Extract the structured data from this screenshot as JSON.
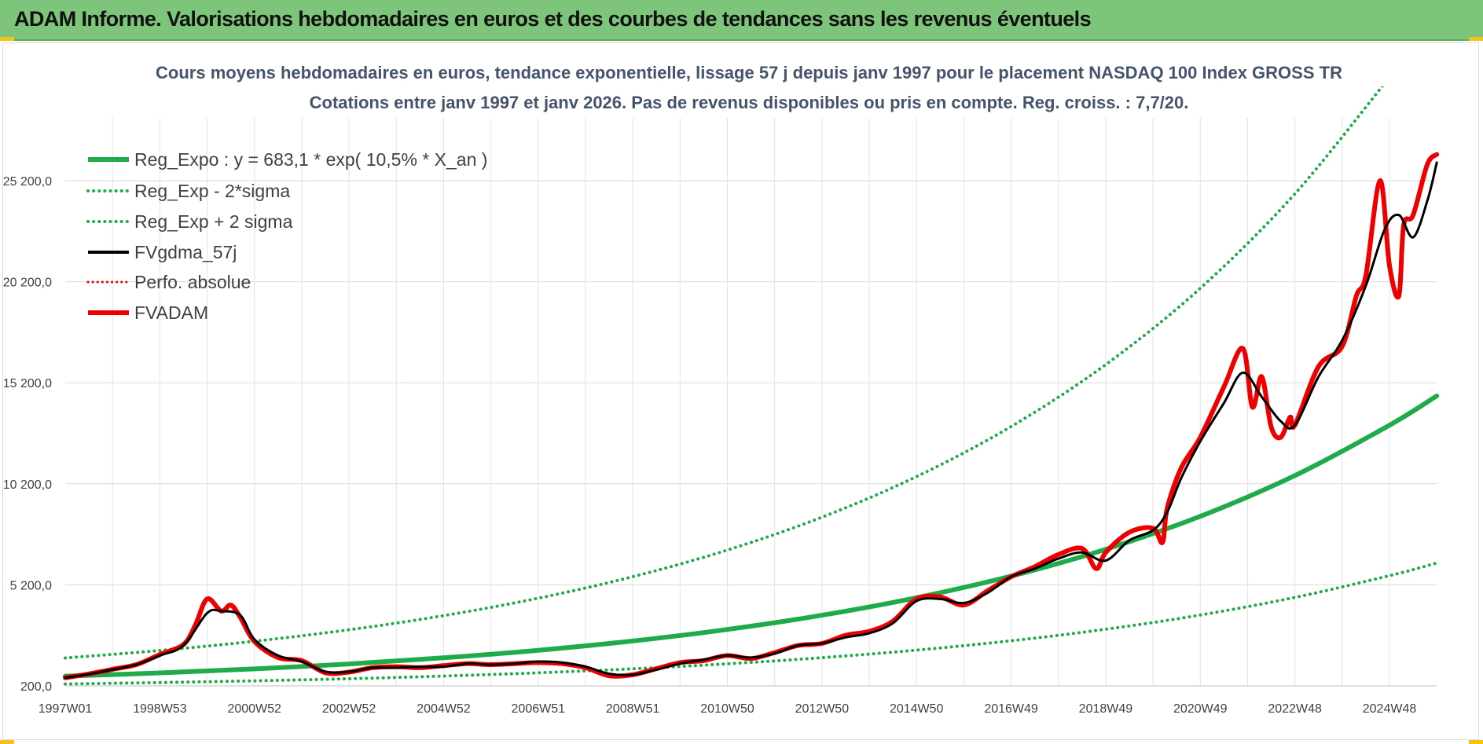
{
  "banner": {
    "title": "ADAM Informe. Valorisations hebdomadaires en euros et des courbes de tendances sans les revenus éventuels"
  },
  "chart_data": {
    "type": "line",
    "title": "Cours moyens hebdomadaires en euros, tendance exponentielle, lissage 57 j depuis janv 1997 pour le placement NASDAQ 100 Index GROSS TR",
    "subtitle": "Cotations entre janv 1997 et janv 2026. Pas de revenus disponibles ou pris en compte. Reg. croiss. : 7,7/20.",
    "xlabel": "",
    "ylabel": "",
    "xlim": [
      1997.0,
      2026.05
    ],
    "ylim": [
      200,
      28000
    ],
    "grid": true,
    "legend_position": "top-left",
    "x_tick_labels": [
      "1997W01",
      "1998W53",
      "2000W52",
      "2002W52",
      "2004W52",
      "2006W51",
      "2008W51",
      "2010W50",
      "2012W50",
      "2014W50",
      "2016W49",
      "2018W49",
      "2020W49",
      "2022W48",
      "2024W48"
    ],
    "x_tick_years": [
      1997.0,
      1999.0,
      2001.0,
      2003.0,
      2005.0,
      2007.0,
      2009.0,
      2011.0,
      2013.0,
      2015.0,
      2017.0,
      2019.0,
      2021.0,
      2023.0,
      2025.0
    ],
    "y_ticks": [
      200,
      5200,
      10200,
      15200,
      20200,
      25200
    ],
    "y_tick_labels": [
      "200,0",
      "5 200,0",
      "10 200,0",
      "15 200,0",
      "20 200,0",
      "25 200,0"
    ],
    "series": [
      {
        "name": "Reg_Expo : y = 683,1 * exp( 10,5% *  X_an )",
        "color": "#1fab4a",
        "style": "solid-thick",
        "x": [
          1997,
          1999,
          2001,
          2003,
          2005,
          2007,
          2009,
          2011,
          2013,
          2015,
          2017,
          2019,
          2021,
          2023,
          2025,
          2026
        ],
        "values": [
          683,
          843,
          1041,
          1286,
          1588,
          1961,
          2422,
          2991,
          3694,
          4562,
          5633,
          6957,
          8591,
          10610,
          13100,
          14550
        ]
      },
      {
        "name": "Reg_Exp - 2*sigma",
        "color": "#1fab4a",
        "style": "dotted",
        "x": [
          1997,
          1999,
          2001,
          2003,
          2005,
          2007,
          2009,
          2011,
          2013,
          2015,
          2017,
          2019,
          2021,
          2023,
          2025,
          2026
        ],
        "values": [
          295,
          364,
          449,
          555,
          685,
          846,
          1045,
          1291,
          1594,
          1969,
          2431,
          3002,
          3707,
          4578,
          5653,
          6280
        ]
      },
      {
        "name": "Reg_Exp + 2 sigma",
        "color": "#1fab4a",
        "style": "dotted",
        "x": [
          1997,
          1999,
          2001,
          2003,
          2005,
          2007,
          2009,
          2011,
          2013,
          2015,
          2017,
          2019,
          2021,
          2023,
          2025
        ],
        "values": [
          1580,
          1951,
          2410,
          2976,
          3675,
          4538,
          5604,
          6921,
          8547,
          10556,
          13036,
          16098,
          19880,
          24551,
          30320
        ]
      },
      {
        "name": "FVgdma_57j",
        "color": "#000000",
        "style": "solid",
        "x": [
          1997.0,
          1997.5,
          1998.0,
          1998.5,
          1999.0,
          1999.5,
          2000.0,
          2000.3,
          2000.7,
          2001.0,
          2001.5,
          2002.0,
          2002.5,
          2003.0,
          2003.5,
          2004.0,
          2004.5,
          2005.0,
          2005.5,
          2006.0,
          2006.5,
          2007.0,
          2007.5,
          2008.0,
          2008.5,
          2009.0,
          2009.5,
          2010.0,
          2010.5,
          2011.0,
          2011.5,
          2012.0,
          2012.5,
          2013.0,
          2013.5,
          2014.0,
          2014.5,
          2015.0,
          2015.5,
          2016.0,
          2016.5,
          2017.0,
          2017.5,
          2018.0,
          2018.5,
          2019.0,
          2019.5,
          2020.0,
          2020.3,
          2020.6,
          2021.0,
          2021.5,
          2021.9,
          2022.3,
          2022.7,
          2023.0,
          2023.5,
          2024.0,
          2024.5,
          2024.9,
          2025.2,
          2025.5,
          2025.8,
          2026.0
        ],
        "values": [
          600,
          780,
          1000,
          1250,
          1700,
          2200,
          3800,
          3900,
          3700,
          2500,
          1700,
          1400,
          900,
          900,
          1100,
          1100,
          1150,
          1150,
          1300,
          1250,
          1300,
          1400,
          1350,
          1150,
          800,
          750,
          1000,
          1300,
          1500,
          1700,
          1600,
          1800,
          2200,
          2300,
          2600,
          2800,
          3300,
          4400,
          4500,
          4300,
          4800,
          5600,
          6000,
          6500,
          6800,
          6400,
          7400,
          7900,
          8800,
          10500,
          12300,
          14200,
          15700,
          14500,
          13300,
          13100,
          15500,
          17300,
          20000,
          22800,
          23500,
          22400,
          24200,
          26100
        ]
      },
      {
        "name": "Perfo. absolue",
        "color": "#e00000",
        "style": "dotted",
        "x": [],
        "values": []
      },
      {
        "name": "FVADAM",
        "color": "#ee0000",
        "style": "solid-thick",
        "x": [
          1997.0,
          1997.5,
          1998.0,
          1998.5,
          1999.0,
          1999.5,
          1999.75,
          2000.0,
          2000.3,
          2000.5,
          2000.7,
          2001.0,
          2001.5,
          2002.0,
          2002.5,
          2003.0,
          2003.5,
          2004.0,
          2004.5,
          2005.0,
          2005.5,
          2006.0,
          2006.5,
          2007.0,
          2007.5,
          2008.0,
          2008.5,
          2009.0,
          2009.5,
          2010.0,
          2010.5,
          2011.0,
          2011.5,
          2012.0,
          2012.5,
          2013.0,
          2013.5,
          2014.0,
          2014.5,
          2015.0,
          2015.5,
          2016.0,
          2016.5,
          2017.0,
          2017.5,
          2018.0,
          2018.5,
          2018.8,
          2019.0,
          2019.5,
          2020.0,
          2020.2,
          2020.3,
          2020.6,
          2021.0,
          2021.5,
          2021.9,
          2022.1,
          2022.3,
          2022.5,
          2022.7,
          2022.9,
          2023.0,
          2023.5,
          2024.0,
          2024.3,
          2024.5,
          2024.8,
          2025.0,
          2025.2,
          2025.3,
          2025.5,
          2025.8,
          2026.0
        ],
        "values": [
          600,
          790,
          1020,
          1250,
          1750,
          2250,
          3200,
          4500,
          3900,
          4200,
          3600,
          2400,
          1600,
          1450,
          850,
          880,
          1100,
          1150,
          1100,
          1200,
          1300,
          1250,
          1300,
          1350,
          1300,
          1100,
          700,
          750,
          1050,
          1350,
          1450,
          1700,
          1550,
          1850,
          2200,
          2300,
          2700,
          2900,
          3400,
          4500,
          4600,
          4200,
          4900,
          5600,
          6100,
          6700,
          7000,
          6000,
          6800,
          7800,
          8000,
          7300,
          9000,
          11000,
          12500,
          15000,
          16900,
          14000,
          15500,
          13000,
          12500,
          13500,
          13100,
          16000,
          17000,
          19500,
          20500,
          25200,
          21000,
          19500,
          23000,
          23500,
          26000,
          26500
        ]
      }
    ]
  }
}
